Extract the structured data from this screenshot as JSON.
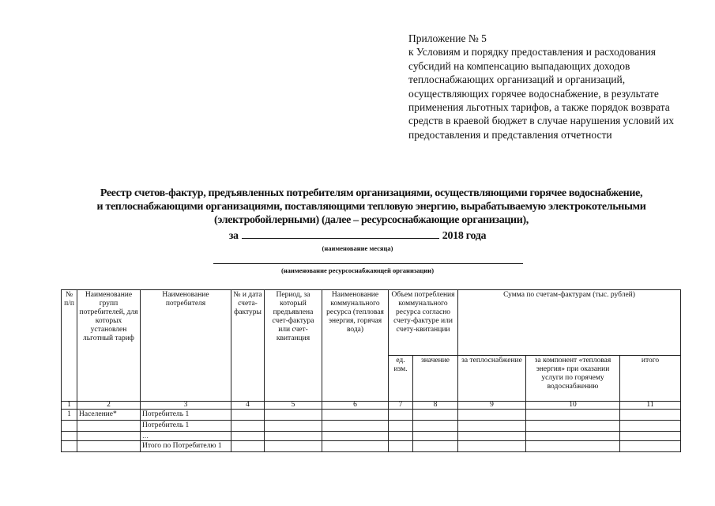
{
  "appendix": {
    "heading": "Приложение № 5",
    "text": "к Условиям и порядку предоставления и расходования субсидий на компенсацию выпадающих доходов теплоснабжающих организаций и организаций, осуществляющих горячее водоснабжение, в результате применения льготных тарифов, а также порядок возврата средств в краевой бюджет в случае нарушения условий их предоставления и представления отчетности"
  },
  "title": {
    "line1": "Реестр счетов-фактур, предъявленных потребителям организациями, осуществляющими горячее водоснабжение,",
    "line2": "и теплоснабжающими организациями, поставляющими тепловую энергию, вырабатываемую электрокотельными",
    "line3": "(электробойлерными) (далее – ресурсоснабжающие организации),",
    "for_prefix": "за",
    "for_suffix": "2018 года",
    "month_caption": "(наименование месяца)",
    "org_caption": "(наименование ресурсоснабжающей организации)"
  },
  "table": {
    "headers": {
      "c1": "№ п/п",
      "c2": "Наименование групп потребителей, для которых установлен льготный тариф",
      "c3": "Наименование потребителя",
      "c4": "№ и дата счета-фактуры",
      "c5": "Период, за который предъявлена счет-фактура или счет-квитанция",
      "c6": "Наименование коммунального ресурса (тепловая энергия, горячая вода)",
      "c7_8": "Объем потребления коммунального ресурса согласно счету-фактуре или счету-квитанции",
      "c7": "ед. изм.",
      "c8": "значение",
      "c9_11": "Сумма по счетам-фактурам (тыс. рублей)",
      "c9": "за теплоснабжение",
      "c10": "за компонент «тепловая энергия» при оказании услуги по горячему водоснабжению",
      "c11": "итого"
    },
    "column_numbers": [
      "1",
      "2",
      "3",
      "4",
      "5",
      "6",
      "7",
      "8",
      "9",
      "10",
      "11"
    ],
    "rows": [
      {
        "num": "1",
        "group": "Население*",
        "consumer": "Потребитель 1"
      },
      {
        "num": "",
        "group": "",
        "consumer": "Потребитель 1"
      },
      {
        "num": "",
        "group": "",
        "consumer": "…"
      },
      {
        "num": "",
        "group": "",
        "consumer": "Итого по Потребителю 1"
      }
    ]
  }
}
